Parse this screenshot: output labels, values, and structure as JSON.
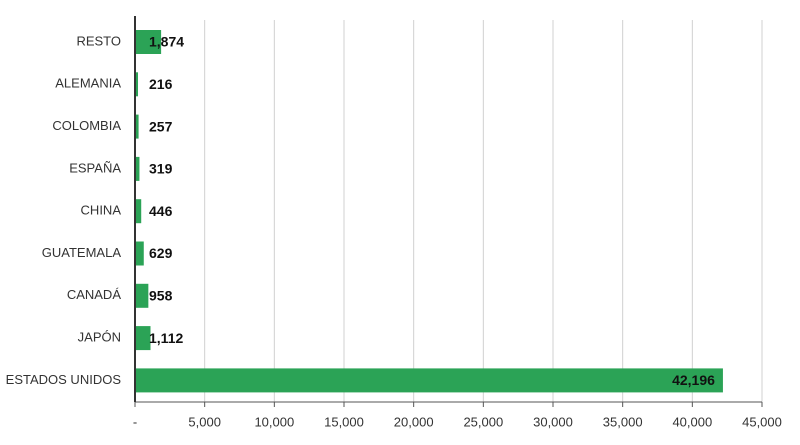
{
  "chart_data": {
    "type": "hbar",
    "categories": [
      "RESTO",
      "ALEMANIA",
      "COLOMBIA",
      "ESPAÑA",
      "CHINA",
      "GUATEMALA",
      "CANADÁ",
      "JAPÓN",
      "ESTADOS UNIDOS"
    ],
    "values": [
      1874,
      216,
      257,
      319,
      446,
      629,
      958,
      1112,
      42196
    ],
    "value_labels": [
      "1,874",
      "216",
      "257",
      "319",
      "446",
      "629",
      "958",
      "1,112",
      "42,196"
    ],
    "color": "#2ba356",
    "xlim": [
      0,
      45000
    ],
    "xticks": [
      {
        "value": 0,
        "label": "-"
      },
      {
        "value": 5000,
        "label": "5,000"
      },
      {
        "value": 10000,
        "label": "10,000"
      },
      {
        "value": 15000,
        "label": "15,000"
      },
      {
        "value": 20000,
        "label": "20,000"
      },
      {
        "value": 25000,
        "label": "25,000"
      },
      {
        "value": 30000,
        "label": "30,000"
      },
      {
        "value": 35000,
        "label": "35,000"
      },
      {
        "value": 40000,
        "label": "40,000"
      },
      {
        "value": 45000,
        "label": "45,000"
      }
    ],
    "grid": true
  }
}
